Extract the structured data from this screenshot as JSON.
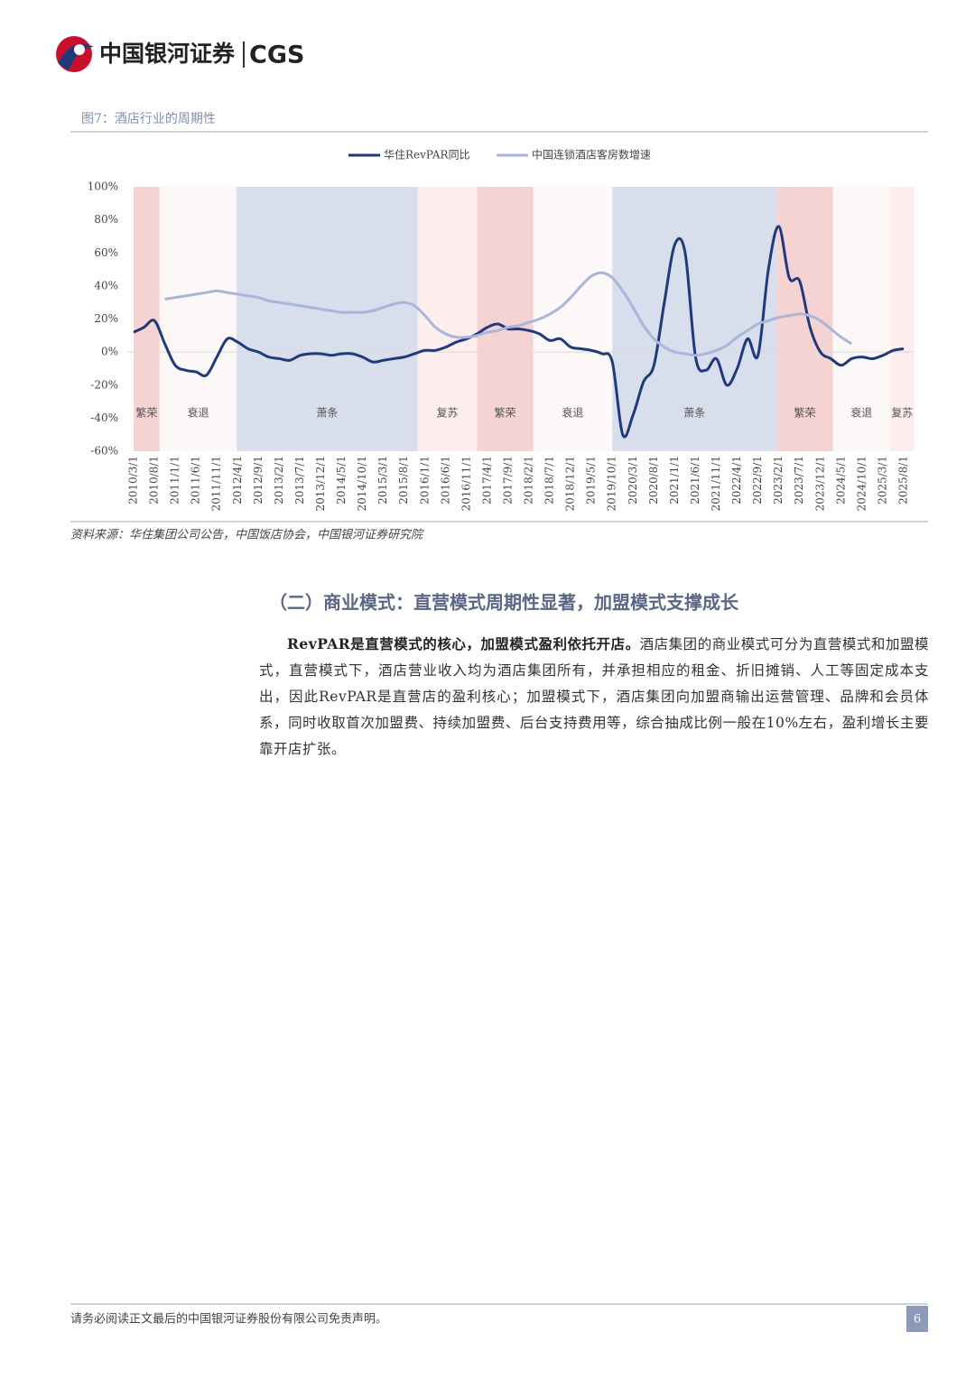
{
  "header": {
    "brand": "中国银河证券",
    "brand_en": "CGS"
  },
  "figure": {
    "title": "图7：酒店行业的周期性",
    "source": "资料来源：华住集团公司公告，中国饭店协会，中国银河证券研究院"
  },
  "chart_data": {
    "type": "line",
    "categories": [
      "2010/3/1",
      null,
      "2010/8/1",
      null,
      "2011/1/1",
      null,
      "2011/6/1",
      null,
      "2011/11/1",
      null,
      "2012/4/1",
      null,
      "2012/9/1",
      null,
      "2013/2/1",
      null,
      "2013/7/1",
      null,
      "2013/12/1",
      null,
      "2014/5/1",
      null,
      "2014/10/1",
      null,
      "2015/3/1",
      null,
      "2015/8/1",
      null,
      "2016/1/1",
      null,
      "2016/6/1",
      null,
      "2016/11/1",
      null,
      "2017/4/1",
      null,
      "2017/9/1",
      null,
      "2018/2/1",
      null,
      "2018/7/1",
      null,
      "2018/12/1",
      null,
      "2019/5/1",
      null,
      "2019/10/1",
      null,
      "2020/3/1",
      null,
      "2020/8/1",
      null,
      "2021/1/1",
      null,
      "2021/6/1",
      null,
      "2021/11/1",
      null,
      "2022/4/1",
      null,
      "2022/9/1",
      null,
      "2023/2/1",
      null,
      "2023/7/1",
      null,
      "2023/12/1",
      null,
      "2024/5/1",
      null,
      "2024/10/1",
      null,
      "2025/3/1",
      null,
      "2025/8/1"
    ],
    "series": [
      {
        "name": "华住RevPAR同比",
        "color": "#1f3a7a",
        "values": [
          12,
          15,
          19,
          5,
          -8,
          -11,
          -12,
          -14,
          -3,
          8,
          6,
          2,
          0,
          -3,
          -4,
          -5,
          -2,
          -1,
          -1,
          -2,
          -1,
          -1,
          -3,
          -6,
          -5,
          -4,
          -3,
          -1,
          1,
          1,
          3,
          6,
          8,
          11,
          15,
          17,
          14,
          14,
          13,
          11,
          7,
          8,
          3,
          2,
          1,
          -1,
          -6,
          -50,
          -38,
          -18,
          -8,
          30,
          65,
          60,
          -3,
          -11,
          -4,
          -20,
          -10,
          8,
          -2,
          50,
          76,
          45,
          43,
          15,
          0,
          -4,
          -8,
          -4,
          -3,
          -4,
          -2,
          1,
          2
        ]
      },
      {
        "name": "中国连锁酒店客房数增速",
        "color": "#a9b6dc",
        "values": [
          null,
          null,
          null,
          32,
          33,
          34,
          35,
          36,
          37,
          36,
          35,
          34,
          33,
          31,
          30,
          29,
          28,
          27,
          26,
          25,
          24,
          24,
          24,
          25,
          27,
          29,
          30,
          28,
          22,
          15,
          11,
          9,
          9,
          10,
          12,
          13,
          15,
          16,
          18,
          20,
          23,
          27,
          33,
          40,
          46,
          48,
          45,
          37,
          27,
          16,
          8,
          3,
          0,
          -1,
          -2,
          -1,
          1,
          4,
          9,
          13,
          17,
          19,
          21,
          22,
          23,
          22,
          19,
          14,
          9,
          5,
          null,
          null,
          null,
          null,
          null
        ]
      }
    ],
    "bands": [
      {
        "label": "繁荣",
        "color": "#f6d3d3",
        "from": 0,
        "to": 2.5
      },
      {
        "label": "衰退",
        "color": "#fcf8f8",
        "from": 2.5,
        "to": 9.9
      },
      {
        "label": "萧条",
        "color": "#d8deec",
        "from": 9.9,
        "to": 27.3
      },
      {
        "label": "复苏",
        "color": "#fdeded",
        "from": 27.3,
        "to": 33
      },
      {
        "label": "繁荣",
        "color": "#f6d3d3",
        "from": 33,
        "to": 38.4
      },
      {
        "label": "衰退",
        "color": "#fcf8f8",
        "from": 38.4,
        "to": 46
      },
      {
        "label": "萧条",
        "color": "#d8deec",
        "from": 46,
        "to": 61.8
      },
      {
        "label": "繁荣",
        "color": "#f6d3d3",
        "from": 61.8,
        "to": 67.2
      },
      {
        "label": "衰退",
        "color": "#fcf8f8",
        "from": 67.2,
        "to": 72.7
      },
      {
        "label": "复苏",
        "color": "#fdeded",
        "from": 72.7,
        "to": 75
      }
    ],
    "ylim": [
      -60,
      100
    ],
    "yticks": [
      {
        "value": 100,
        "label": "100%"
      },
      {
        "value": 80,
        "label": "80%"
      },
      {
        "value": 60,
        "label": "60%"
      },
      {
        "value": 40,
        "label": "40%"
      },
      {
        "value": 20,
        "label": "20%"
      },
      {
        "value": 0,
        "label": "0%"
      },
      {
        "value": -20,
        "label": "-20%"
      },
      {
        "value": -40,
        "label": "-40%"
      },
      {
        "value": -60,
        "label": "-60%"
      }
    ],
    "legend": "top"
  },
  "section": {
    "heading": "（二）商业模式：直营模式周期性显著，加盟模式支撑成长",
    "lead": "RevPAR是直营模式的核心，加盟模式盈利依托开店。",
    "body": "酒店集团的商业模式可分为直营模式和加盟模式，直营模式下，酒店营业收入均为酒店集团所有，并承担相应的租金、折旧摊销、人工等固定成本支出，因此RevPAR是直营店的盈利核心；加盟模式下，酒店集团向加盟商输出运营管理、品牌和会员体系，同时收取首次加盟费、持续加盟费、后台支持费用等，综合抽成比例一般在10%左右，盈利增长主要靠开店扩张。"
  },
  "footer": {
    "disclaimer": "请务必阅读正文最后的中国银河证券股份有限公司免责声明。",
    "page": "6"
  }
}
